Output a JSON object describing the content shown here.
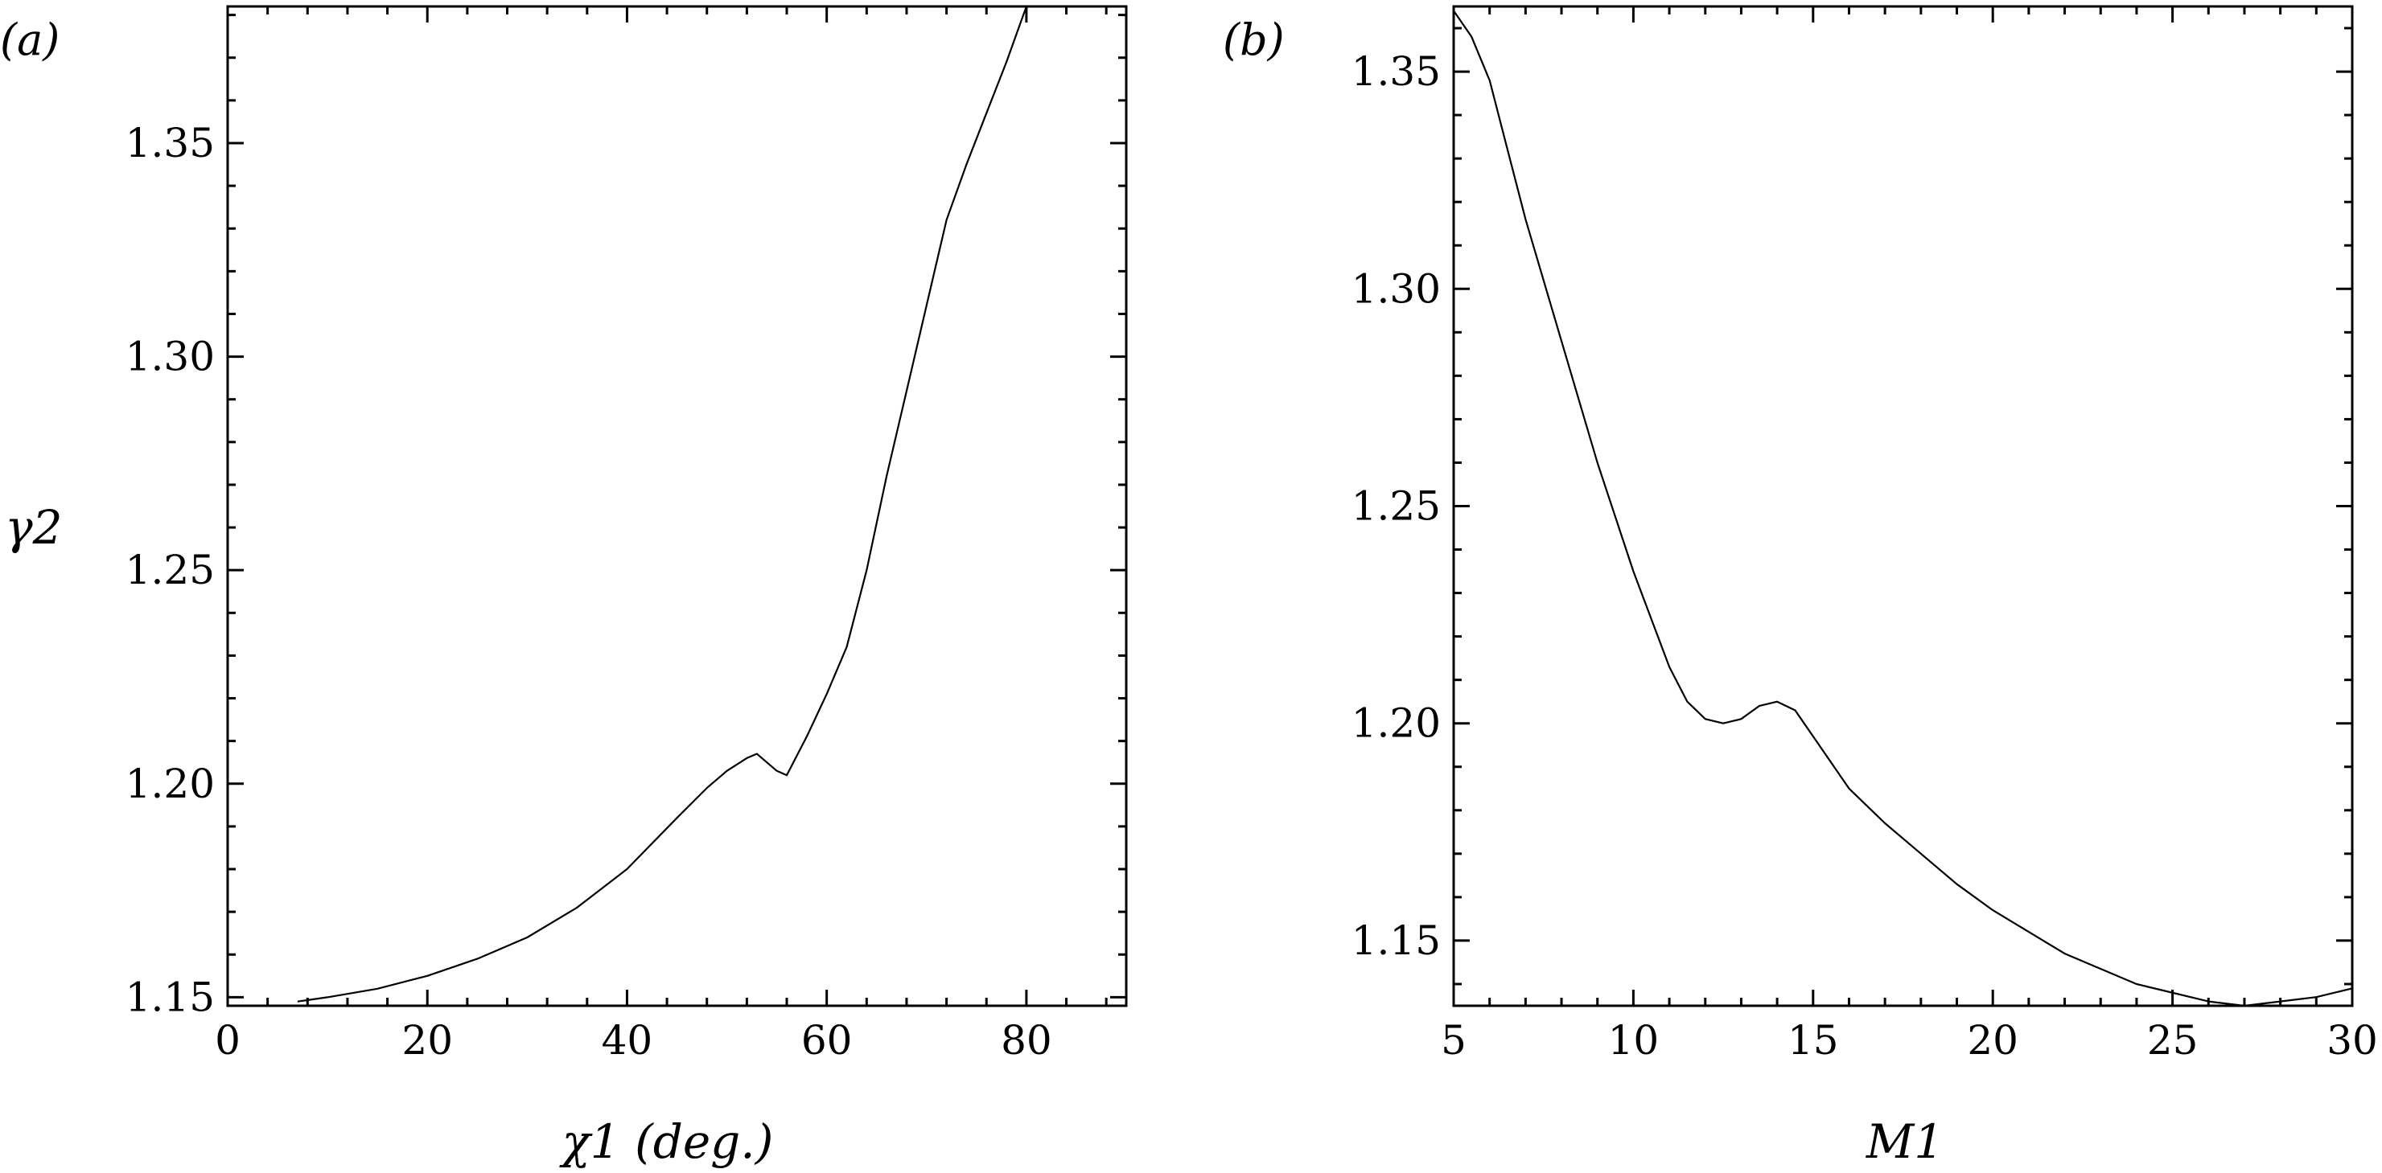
{
  "chart_data": [
    {
      "type": "line",
      "panel_label": "(a)",
      "xlabel": "χ1 (deg.)",
      "ylabel": "γ2",
      "xlim": [
        0,
        90
      ],
      "ylim": [
        1.148,
        1.382
      ],
      "xticks": [
        0,
        20,
        40,
        60,
        80
      ],
      "xtick_labels": [
        "0",
        "20",
        "40",
        "60",
        "80"
      ],
      "yticks": [
        1.15,
        1.2,
        1.25,
        1.3,
        1.35
      ],
      "ytick_labels": [
        "1.15",
        "1.20",
        "1.25",
        "1.30",
        "1.35"
      ],
      "grid": false,
      "series": [
        {
          "x": [
            7,
            10,
            15,
            20,
            25,
            30,
            35,
            40,
            45,
            48,
            50,
            52,
            53,
            54,
            55,
            56,
            58,
            60,
            62,
            64,
            66,
            68,
            70,
            72,
            74,
            76,
            78,
            80
          ],
          "y": [
            1.149,
            1.15,
            1.152,
            1.155,
            1.159,
            1.164,
            1.171,
            1.18,
            1.192,
            1.199,
            1.203,
            1.206,
            1.207,
            1.205,
            1.203,
            1.202,
            1.211,
            1.221,
            1.232,
            1.25,
            1.272,
            1.292,
            1.312,
            1.332,
            1.345,
            1.357,
            1.369,
            1.382
          ]
        }
      ]
    },
    {
      "type": "line",
      "panel_label": "(b)",
      "xlabel": "M1",
      "ylabel": "",
      "xlim": [
        5,
        30
      ],
      "ylim": [
        1.135,
        1.365
      ],
      "xticks": [
        5,
        10,
        15,
        20,
        25,
        30
      ],
      "xtick_labels": [
        "5",
        "10",
        "15",
        "20",
        "25",
        "30"
      ],
      "yticks": [
        1.15,
        1.2,
        1.25,
        1.3,
        1.35
      ],
      "ytick_labels": [
        "1.15",
        "1.20",
        "1.25",
        "1.30",
        "1.35"
      ],
      "grid": false,
      "series": [
        {
          "x": [
            5,
            5.5,
            6,
            6.5,
            7,
            8,
            9,
            10,
            11,
            11.5,
            12,
            12.5,
            13,
            13.5,
            14,
            14.5,
            15,
            16,
            17,
            18,
            19,
            20,
            22,
            24,
            26,
            27,
            28,
            29,
            30
          ],
          "y": [
            1.364,
            1.358,
            1.348,
            1.332,
            1.316,
            1.288,
            1.26,
            1.235,
            1.213,
            1.205,
            1.201,
            1.2,
            1.201,
            1.204,
            1.205,
            1.203,
            1.197,
            1.185,
            1.177,
            1.17,
            1.163,
            1.157,
            1.147,
            1.14,
            1.136,
            1.135,
            1.136,
            1.137,
            1.139
          ]
        }
      ]
    }
  ]
}
